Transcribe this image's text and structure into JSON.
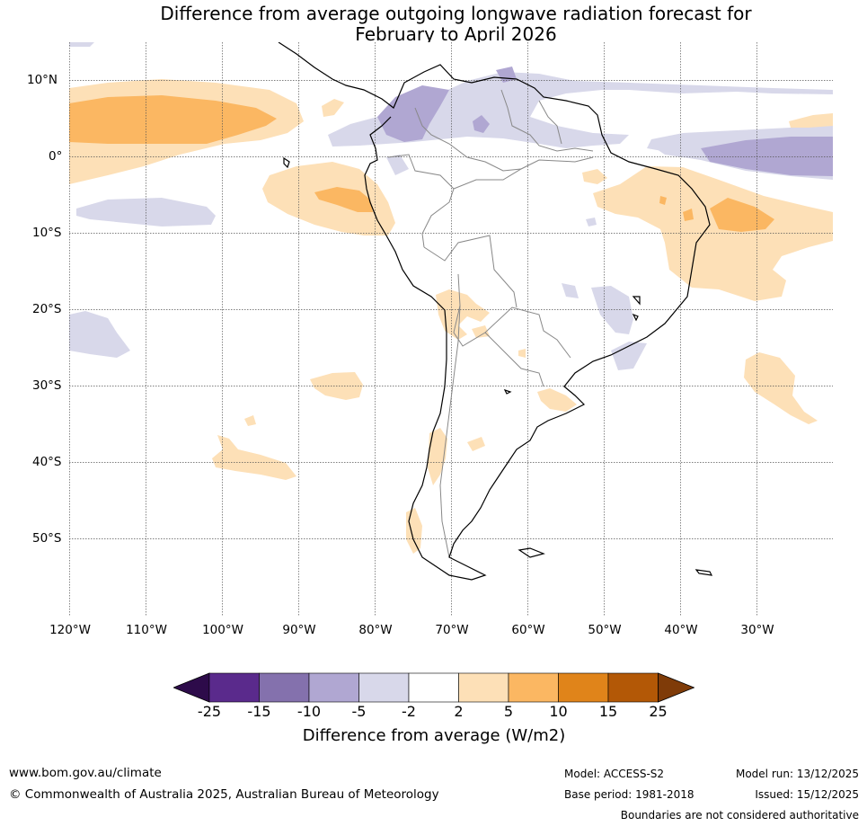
{
  "title": {
    "line1": "Difference from average outgoing longwave radiation forecast for",
    "line2": "February to April 2026"
  },
  "map": {
    "region": "South America",
    "lat_labels": [
      "10°N",
      "0°",
      "10°S",
      "20°S",
      "30°S",
      "40°S",
      "50°S"
    ],
    "lon_labels": [
      "120°W",
      "110°W",
      "100°W",
      "90°W",
      "80°W",
      "70°W",
      "60°W",
      "50°W",
      "40°W",
      "30°W"
    ]
  },
  "legend": {
    "title": "Difference from average (W/m2)",
    "ticks": [
      "-25",
      "-15",
      "-10",
      "-5",
      "-2",
      "2",
      "5",
      "10",
      "15",
      "25"
    ],
    "colors": [
      "#2d0b4a",
      "#5a2a8c",
      "#8471ad",
      "#b0a7d2",
      "#d8d8ea",
      "#ffffff",
      "#fde0b7",
      "#fbb762",
      "#e0841a",
      "#b35806",
      "#7f3b08"
    ]
  },
  "footer": {
    "website": "www.bom.gov.au/climate",
    "copyright": "© Commonwealth of Australia 2025, Australian Bureau of Meteorology",
    "model": "Model: ACCESS-S2",
    "base_period": "Base period: 1981-2018",
    "model_run": "Model run: 13/12/2025",
    "issued": "Issued: 15/12/2025",
    "disclaimer": "Boundaries are not considered authoritative"
  }
}
